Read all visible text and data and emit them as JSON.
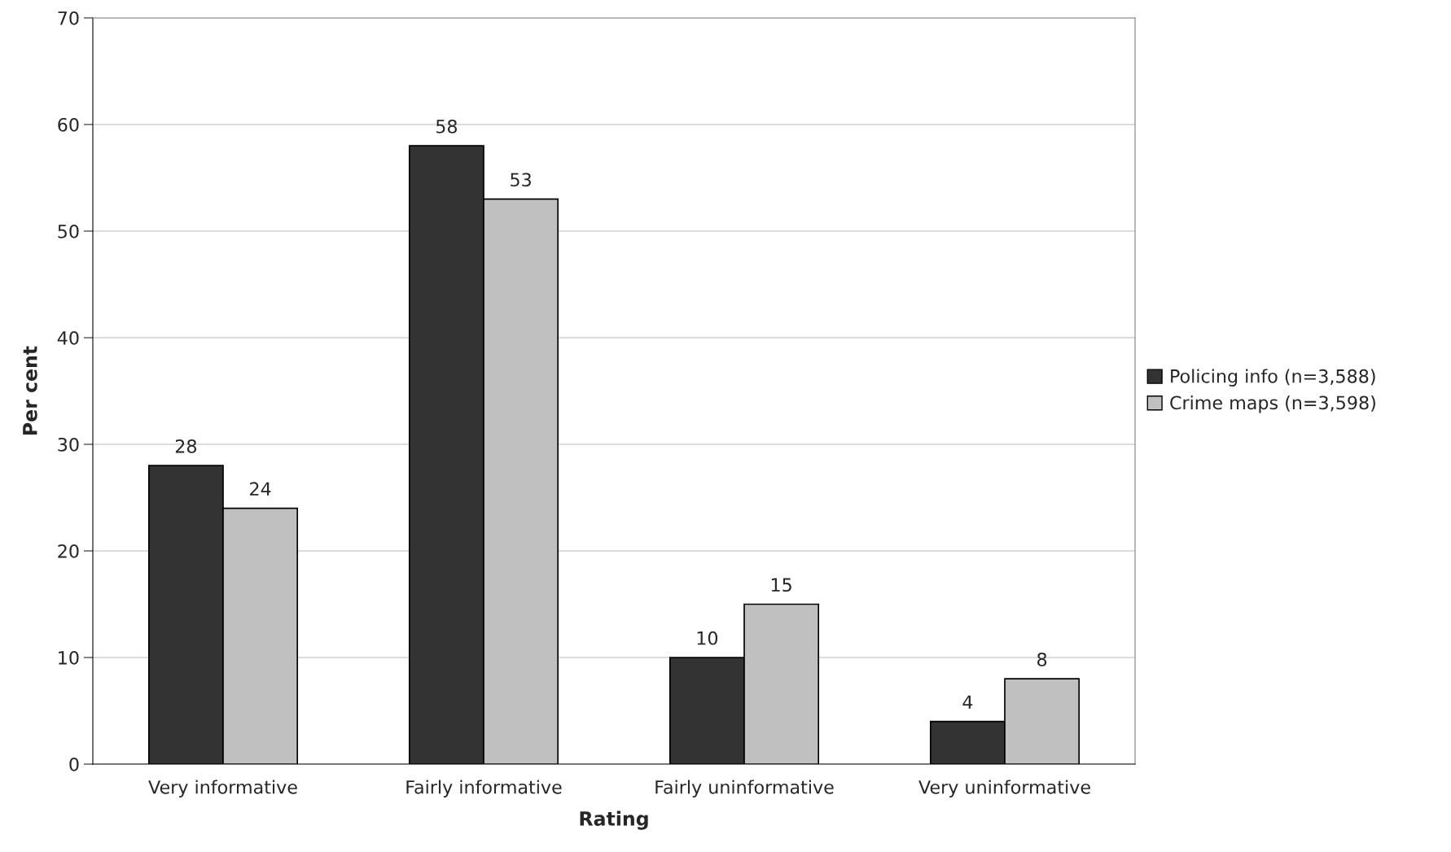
{
  "chart_data": {
    "type": "bar",
    "xlabel": "Rating",
    "ylabel": "Per cent",
    "categories": [
      "Very informative",
      "Fairly informative",
      "Fairly uninformative",
      "Very uninformative"
    ],
    "series": [
      {
        "name": "Policing info (n=3,588)",
        "color": "#333333",
        "values": [
          28,
          58,
          10,
          4
        ]
      },
      {
        "name": "Crime maps (n=3,598)",
        "color": "#c0c0c0",
        "values": [
          24,
          53,
          15,
          8
        ]
      }
    ],
    "ylim": [
      0,
      70
    ],
    "yticks": [
      0,
      10,
      20,
      30,
      40,
      50,
      60,
      70
    ],
    "grid": "y",
    "legend": "right",
    "data_labels": true
  }
}
